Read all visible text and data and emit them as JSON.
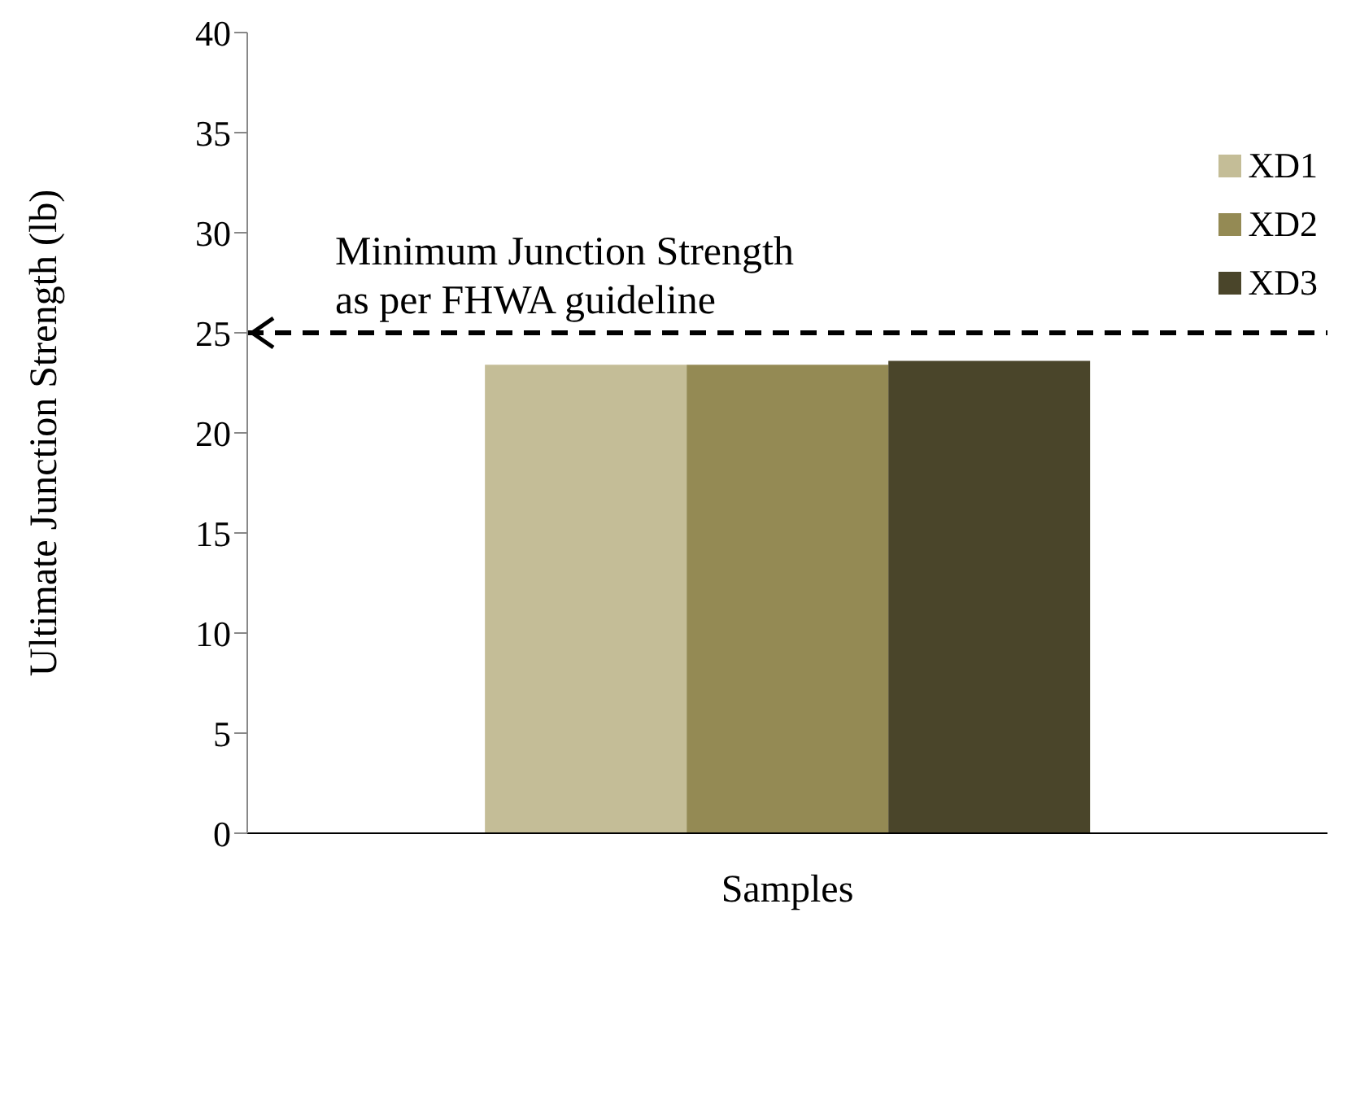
{
  "chart_data": {
    "type": "bar",
    "xlabel": "Samples",
    "ylabel": "Ultimate  Junction  Strength  (lb)",
    "categories": [
      null
    ],
    "series": [
      {
        "name": "XD1",
        "color": "#c4bd97",
        "values": [
          23.4
        ]
      },
      {
        "name": "XD2",
        "color": "#948a54",
        "values": [
          23.4
        ]
      },
      {
        "name": "XD3",
        "color": "#4a452a",
        "values": [
          23.6
        ]
      }
    ],
    "ylim": [
      0,
      40
    ],
    "yticks": [
      0,
      5,
      10,
      15,
      20,
      25,
      30,
      35,
      40
    ],
    "grid": false,
    "legend": "top right",
    "ref_lines": [
      {
        "axis": "y",
        "value": 25,
        "label": "Minimum Junction Strength as per FHWA guideline",
        "line_style": "dashed",
        "color": "#000000"
      }
    ]
  }
}
